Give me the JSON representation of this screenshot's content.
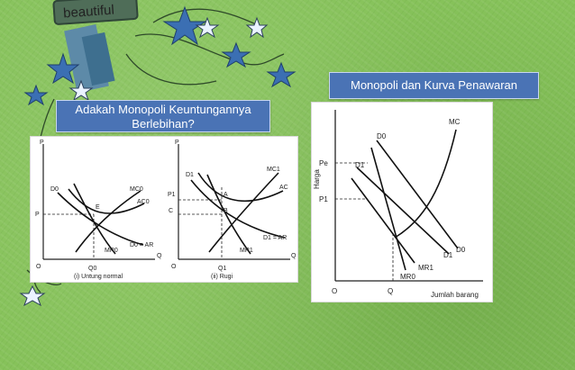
{
  "slide": {
    "left_title": "Adakah Monopoli Keuntungannya Berlebihan?",
    "right_title": "Monopoli dan Kurva Penawaran",
    "logo_text": "beautiful",
    "background_color": "#86c25a",
    "title_box_color": "#4a73b5"
  },
  "left_figure": {
    "graph1": {
      "y_axis": "P",
      "x_axis": "Q",
      "origin": "O",
      "price_tick": "P",
      "quantity_tick": "Q0",
      "point_label": "E",
      "curves": {
        "demand": "D0",
        "mc": "MC0",
        "ac": "AC0",
        "mr": "MR0",
        "d_ar": "D0 = AR"
      },
      "caption": "(i) Untung normal"
    },
    "graph2": {
      "y_axis": "P",
      "x_axis": "Q",
      "origin": "O",
      "price_tick1": "P1",
      "price_tick2": "C",
      "quantity_tick": "Q1",
      "point_a": "A",
      "point_b": "B",
      "curves": {
        "demand": "D1",
        "mc": "MC1",
        "ac": "AC",
        "mr": "MR1",
        "d_ar": "D1 = AR"
      },
      "caption": "(ii) Rugi"
    }
  },
  "right_figure": {
    "y_axis": "Harga",
    "x_axis": "Jumlah barang",
    "origin": "O",
    "price_tick_high": "Pe",
    "price_tick_low": "P1",
    "quantity_tick": "Q",
    "curves": {
      "mc": "MC",
      "d0_top": "D0",
      "d1_top": "D1",
      "d1_bottom": "D1",
      "d0_bottom": "D0",
      "mr1": "MR1",
      "mr0": "MR0"
    }
  }
}
